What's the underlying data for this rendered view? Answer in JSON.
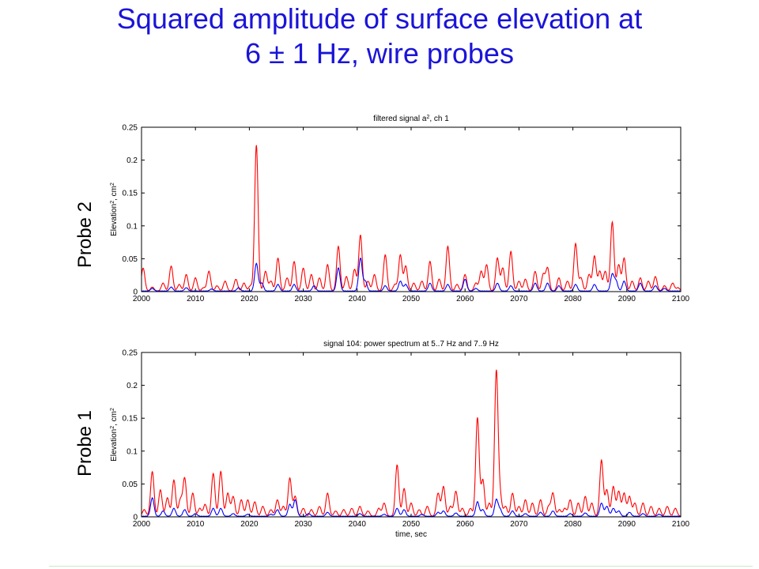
{
  "slide": {
    "title_line1": "Squared amplitude of surface elevation at",
    "title_line2": "6 ± 1 Hz, wire probes",
    "colors": {
      "title": "#1a14d8",
      "red_series": "#ff0000",
      "blue_series": "#0000ff"
    }
  },
  "labels": {
    "probe_top": "Probe 2",
    "probe_bottom": "Probe 1"
  },
  "chart_data": [
    {
      "type": "line",
      "title": "filtered signal a², ch 1",
      "xlabel": "",
      "ylabel": "Elevation², cm²",
      "xlim": [
        2000,
        2100
      ],
      "ylim": [
        0,
        0.25
      ],
      "xticks": [
        2000,
        2010,
        2020,
        2030,
        2040,
        2050,
        2060,
        2070,
        2080,
        2090,
        2100
      ],
      "yticks": [
        0,
        0.05,
        0.1,
        0.15,
        0.2,
        0.25
      ],
      "ytick_labels": [
        "0",
        "0.05",
        "0.1",
        "0.15",
        "0.2",
        "0.25"
      ],
      "grid": false,
      "series": [
        {
          "color": "#ff0000",
          "peaks": [
            [
              2000.3,
              0.035
            ],
            [
              2002,
              0.006
            ],
            [
              2004,
              0.012
            ],
            [
              2005.5,
              0.038
            ],
            [
              2007,
              0.01
            ],
            [
              2008.3,
              0.025
            ],
            [
              2010,
              0.02
            ],
            [
              2011.5,
              0.005
            ],
            [
              2012.5,
              0.03
            ],
            [
              2014,
              0.008
            ],
            [
              2015.5,
              0.015
            ],
            [
              2017.5,
              0.018
            ],
            [
              2019,
              0.012
            ],
            [
              2020.2,
              0.008
            ],
            [
              2021.3,
              0.222
            ],
            [
              2023,
              0.03
            ],
            [
              2024,
              0.015
            ],
            [
              2025.3,
              0.05
            ],
            [
              2027,
              0.02
            ],
            [
              2028.3,
              0.045
            ],
            [
              2030,
              0.035
            ],
            [
              2031.5,
              0.025
            ],
            [
              2033,
              0.02
            ],
            [
              2034.5,
              0.04
            ],
            [
              2036.5,
              0.068
            ],
            [
              2038,
              0.022
            ],
            [
              2039.5,
              0.033
            ],
            [
              2040.6,
              0.085
            ],
            [
              2042,
              0.015
            ],
            [
              2043.2,
              0.025
            ],
            [
              2045.2,
              0.055
            ],
            [
              2047,
              0.01
            ],
            [
              2048,
              0.055
            ],
            [
              2049,
              0.038
            ],
            [
              2050.5,
              0.012
            ],
            [
              2052,
              0.015
            ],
            [
              2053.5,
              0.045
            ],
            [
              2055.2,
              0.018
            ],
            [
              2056.8,
              0.068
            ],
            [
              2058.5,
              0.01
            ],
            [
              2060,
              0.025
            ],
            [
              2062,
              0.012
            ],
            [
              2063,
              0.03
            ],
            [
              2064,
              0.04
            ],
            [
              2066,
              0.05
            ],
            [
              2067,
              0.035
            ],
            [
              2068.5,
              0.06
            ],
            [
              2070,
              0.015
            ],
            [
              2071.2,
              0.018
            ],
            [
              2073,
              0.03
            ],
            [
              2074.5,
              0.025
            ],
            [
              2075.3,
              0.035
            ],
            [
              2077.4,
              0.02
            ],
            [
              2079,
              0.015
            ],
            [
              2080.5,
              0.072
            ],
            [
              2081.5,
              0.02
            ],
            [
              2083,
              0.025
            ],
            [
              2084,
              0.053
            ],
            [
              2085,
              0.03
            ],
            [
              2086,
              0.03
            ],
            [
              2087.3,
              0.105
            ],
            [
              2088.5,
              0.04
            ],
            [
              2089.5,
              0.05
            ],
            [
              2091,
              0.015
            ],
            [
              2092.5,
              0.02
            ],
            [
              2094,
              0.015
            ],
            [
              2095.3,
              0.022
            ],
            [
              2097,
              0.008
            ],
            [
              2098.5,
              0.012
            ],
            [
              2099.5,
              0.005
            ]
          ]
        },
        {
          "color": "#0000ff",
          "peaks": [
            [
              2002,
              0.004
            ],
            [
              2005.5,
              0.006
            ],
            [
              2008.3,
              0.005
            ],
            [
              2013,
              0.003
            ],
            [
              2018,
              0.005
            ],
            [
              2021.3,
              0.042
            ],
            [
              2022.3,
              0.012
            ],
            [
              2025.3,
              0.01
            ],
            [
              2028.3,
              0.01
            ],
            [
              2032,
              0.008
            ],
            [
              2036.5,
              0.035
            ],
            [
              2040.6,
              0.05
            ],
            [
              2041.5,
              0.015
            ],
            [
              2045.2,
              0.008
            ],
            [
              2048,
              0.015
            ],
            [
              2049,
              0.01
            ],
            [
              2053.5,
              0.012
            ],
            [
              2056.8,
              0.01
            ],
            [
              2060,
              0.018
            ],
            [
              2062,
              0.004
            ],
            [
              2066,
              0.012
            ],
            [
              2068.5,
              0.008
            ],
            [
              2073,
              0.012
            ],
            [
              2075.3,
              0.012
            ],
            [
              2077.4,
              0.008
            ],
            [
              2080.5,
              0.01
            ],
            [
              2084,
              0.01
            ],
            [
              2087.3,
              0.025
            ],
            [
              2088,
              0.015
            ],
            [
              2089.5,
              0.015
            ],
            [
              2092.5,
              0.012
            ],
            [
              2095.3,
              0.008
            ],
            [
              2097,
              0.004
            ]
          ]
        }
      ]
    },
    {
      "type": "line",
      "title": "signal 104: power spectrum at 5..7 Hz and 7..9 Hz",
      "xlabel": "time, sec",
      "ylabel": "Elevation², cm²",
      "xlim": [
        2000,
        2100
      ],
      "ylim": [
        0,
        0.25
      ],
      "xticks": [
        2000,
        2010,
        2020,
        2030,
        2040,
        2050,
        2060,
        2070,
        2080,
        2090,
        2100
      ],
      "yticks": [
        0,
        0.05,
        0.1,
        0.15,
        0.2,
        0.25
      ],
      "ytick_labels": [
        "0",
        "0.05",
        "0.1",
        "0.15",
        "0.2",
        "0.25"
      ],
      "grid": false,
      "series": [
        {
          "color": "#ff0000",
          "peaks": [
            [
              2000.5,
              0.01
            ],
            [
              2002,
              0.068
            ],
            [
              2003.5,
              0.04
            ],
            [
              2004.8,
              0.028
            ],
            [
              2006,
              0.055
            ],
            [
              2007.2,
              0.025
            ],
            [
              2008,
              0.058
            ],
            [
              2009.5,
              0.035
            ],
            [
              2010.8,
              0.012
            ],
            [
              2011.8,
              0.018
            ],
            [
              2013.3,
              0.065
            ],
            [
              2014.7,
              0.068
            ],
            [
              2016,
              0.035
            ],
            [
              2017,
              0.03
            ],
            [
              2018.5,
              0.025
            ],
            [
              2019.7,
              0.025
            ],
            [
              2021,
              0.022
            ],
            [
              2022.5,
              0.015
            ],
            [
              2024,
              0.01
            ],
            [
              2025.2,
              0.025
            ],
            [
              2026.3,
              0.015
            ],
            [
              2027.5,
              0.058
            ],
            [
              2028.5,
              0.03
            ],
            [
              2030,
              0.012
            ],
            [
              2031.5,
              0.01
            ],
            [
              2033,
              0.015
            ],
            [
              2034.5,
              0.035
            ],
            [
              2036,
              0.008
            ],
            [
              2037.5,
              0.01
            ],
            [
              2039,
              0.012
            ],
            [
              2040.5,
              0.015
            ],
            [
              2042,
              0.008
            ],
            [
              2044,
              0.012
            ],
            [
              2045,
              0.02
            ],
            [
              2047.4,
              0.078
            ],
            [
              2048.7,
              0.042
            ],
            [
              2050,
              0.02
            ],
            [
              2051.5,
              0.01
            ],
            [
              2053,
              0.015
            ],
            [
              2055,
              0.035
            ],
            [
              2056,
              0.045
            ],
            [
              2057.3,
              0.015
            ],
            [
              2058.3,
              0.038
            ],
            [
              2059.5,
              0.012
            ],
            [
              2061,
              0.012
            ],
            [
              2062.3,
              0.15
            ],
            [
              2063.3,
              0.055
            ],
            [
              2064.5,
              0.02
            ],
            [
              2065.8,
              0.22
            ],
            [
              2066.5,
              0.03
            ],
            [
              2067.5,
              0.015
            ],
            [
              2068.8,
              0.035
            ],
            [
              2070,
              0.015
            ],
            [
              2071.2,
              0.025
            ],
            [
              2072.5,
              0.02
            ],
            [
              2074,
              0.025
            ],
            [
              2075.5,
              0.015
            ],
            [
              2076.3,
              0.035
            ],
            [
              2077.5,
              0.01
            ],
            [
              2078.5,
              0.012
            ],
            [
              2079.5,
              0.025
            ],
            [
              2081,
              0.02
            ],
            [
              2082.3,
              0.03
            ],
            [
              2083.5,
              0.02
            ],
            [
              2085.3,
              0.085
            ],
            [
              2086.3,
              0.04
            ],
            [
              2087.5,
              0.045
            ],
            [
              2088.5,
              0.038
            ],
            [
              2089.5,
              0.035
            ],
            [
              2090.5,
              0.03
            ],
            [
              2091.5,
              0.02
            ],
            [
              2093,
              0.02
            ],
            [
              2094.5,
              0.015
            ],
            [
              2096,
              0.012
            ],
            [
              2097.5,
              0.015
            ],
            [
              2099,
              0.012
            ]
          ]
        },
        {
          "color": "#0000ff",
          "peaks": [
            [
              2002,
              0.028
            ],
            [
              2004,
              0.008
            ],
            [
              2006,
              0.012
            ],
            [
              2008,
              0.01
            ],
            [
              2010,
              0.004
            ],
            [
              2013.3,
              0.012
            ],
            [
              2014.7,
              0.012
            ],
            [
              2017,
              0.004
            ],
            [
              2019.7,
              0.003
            ],
            [
              2024,
              0.003
            ],
            [
              2025.2,
              0.01
            ],
            [
              2027.5,
              0.018
            ],
            [
              2028.5,
              0.025
            ],
            [
              2031,
              0.004
            ],
            [
              2034.5,
              0.006
            ],
            [
              2040.5,
              0.004
            ],
            [
              2045,
              0.003
            ],
            [
              2047.4,
              0.012
            ],
            [
              2048.7,
              0.01
            ],
            [
              2052,
              0.003
            ],
            [
              2055,
              0.006
            ],
            [
              2056,
              0.008
            ],
            [
              2058.3,
              0.005
            ],
            [
              2062.3,
              0.022
            ],
            [
              2063.3,
              0.01
            ],
            [
              2065.8,
              0.025
            ],
            [
              2066.5,
              0.01
            ],
            [
              2068.8,
              0.008
            ],
            [
              2071.2,
              0.004
            ],
            [
              2074,
              0.006
            ],
            [
              2076.3,
              0.008
            ],
            [
              2079.5,
              0.004
            ],
            [
              2082.3,
              0.005
            ],
            [
              2085.3,
              0.02
            ],
            [
              2086.3,
              0.015
            ],
            [
              2087.5,
              0.012
            ],
            [
              2088.5,
              0.008
            ],
            [
              2090.5,
              0.006
            ],
            [
              2093,
              0.004
            ],
            [
              2096,
              0.003
            ]
          ]
        }
      ]
    }
  ]
}
